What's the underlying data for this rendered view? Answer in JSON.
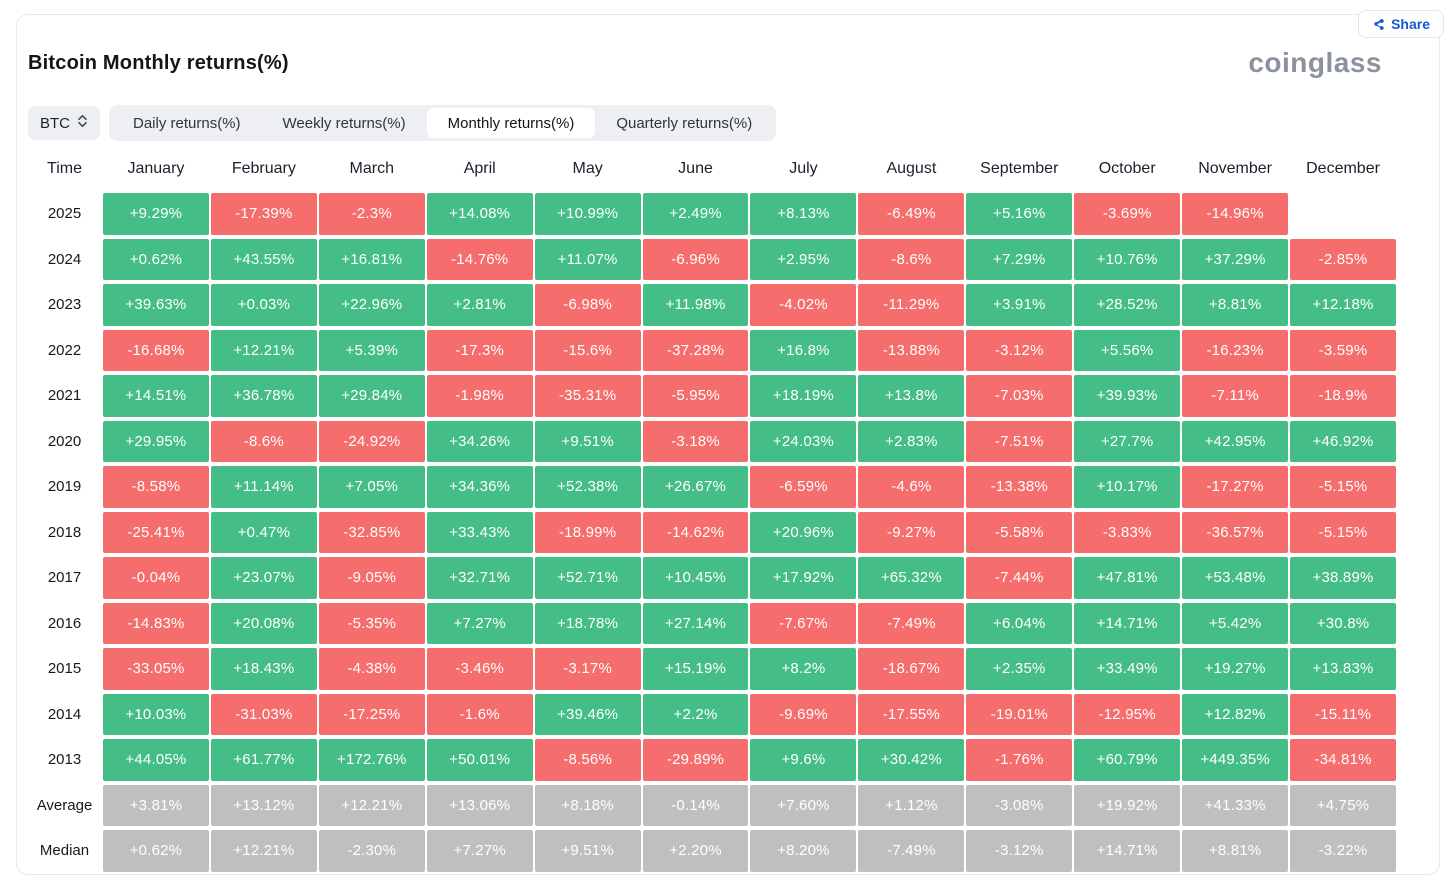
{
  "share_button": {
    "label": "Share"
  },
  "brand": {
    "logo_text": "coinglass"
  },
  "page": {
    "title": "Bitcoin Monthly returns(%)"
  },
  "controls": {
    "symbol_select": {
      "value": "BTC"
    },
    "tabs": [
      {
        "label": "Daily returns(%)",
        "active": false
      },
      {
        "label": "Weekly returns(%)",
        "active": false
      },
      {
        "label": "Monthly returns(%)",
        "active": true
      },
      {
        "label": "Quarterly returns(%)",
        "active": false
      }
    ]
  },
  "table": {
    "corner_label": "Time",
    "month_headers": [
      "January",
      "February",
      "March",
      "April",
      "May",
      "June",
      "July",
      "August",
      "September",
      "October",
      "November",
      "December"
    ],
    "rows": [
      {
        "label": "2025",
        "type": "year",
        "values": [
          "+9.29%",
          "-17.39%",
          "-2.3%",
          "+14.08%",
          "+10.99%",
          "+2.49%",
          "+8.13%",
          "-6.49%",
          "+5.16%",
          "-3.69%",
          "-14.96%",
          null
        ]
      },
      {
        "label": "2024",
        "type": "year",
        "values": [
          "+0.62%",
          "+43.55%",
          "+16.81%",
          "-14.76%",
          "+11.07%",
          "-6.96%",
          "+2.95%",
          "-8.6%",
          "+7.29%",
          "+10.76%",
          "+37.29%",
          "-2.85%"
        ]
      },
      {
        "label": "2023",
        "type": "year",
        "values": [
          "+39.63%",
          "+0.03%",
          "+22.96%",
          "+2.81%",
          "-6.98%",
          "+11.98%",
          "-4.02%",
          "-11.29%",
          "+3.91%",
          "+28.52%",
          "+8.81%",
          "+12.18%"
        ]
      },
      {
        "label": "2022",
        "type": "year",
        "values": [
          "-16.68%",
          "+12.21%",
          "+5.39%",
          "-17.3%",
          "-15.6%",
          "-37.28%",
          "+16.8%",
          "-13.88%",
          "-3.12%",
          "+5.56%",
          "-16.23%",
          "-3.59%"
        ]
      },
      {
        "label": "2021",
        "type": "year",
        "values": [
          "+14.51%",
          "+36.78%",
          "+29.84%",
          "-1.98%",
          "-35.31%",
          "-5.95%",
          "+18.19%",
          "+13.8%",
          "-7.03%",
          "+39.93%",
          "-7.11%",
          "-18.9%"
        ]
      },
      {
        "label": "2020",
        "type": "year",
        "values": [
          "+29.95%",
          "-8.6%",
          "-24.92%",
          "+34.26%",
          "+9.51%",
          "-3.18%",
          "+24.03%",
          "+2.83%",
          "-7.51%",
          "+27.7%",
          "+42.95%",
          "+46.92%"
        ]
      },
      {
        "label": "2019",
        "type": "year",
        "values": [
          "-8.58%",
          "+11.14%",
          "+7.05%",
          "+34.36%",
          "+52.38%",
          "+26.67%",
          "-6.59%",
          "-4.6%",
          "-13.38%",
          "+10.17%",
          "-17.27%",
          "-5.15%"
        ]
      },
      {
        "label": "2018",
        "type": "year",
        "values": [
          "-25.41%",
          "+0.47%",
          "-32.85%",
          "+33.43%",
          "-18.99%",
          "-14.62%",
          "+20.96%",
          "-9.27%",
          "-5.58%",
          "-3.83%",
          "-36.57%",
          "-5.15%"
        ]
      },
      {
        "label": "2017",
        "type": "year",
        "values": [
          "-0.04%",
          "+23.07%",
          "-9.05%",
          "+32.71%",
          "+52.71%",
          "+10.45%",
          "+17.92%",
          "+65.32%",
          "-7.44%",
          "+47.81%",
          "+53.48%",
          "+38.89%"
        ]
      },
      {
        "label": "2016",
        "type": "year",
        "values": [
          "-14.83%",
          "+20.08%",
          "-5.35%",
          "+7.27%",
          "+18.78%",
          "+27.14%",
          "-7.67%",
          "-7.49%",
          "+6.04%",
          "+14.71%",
          "+5.42%",
          "+30.8%"
        ]
      },
      {
        "label": "2015",
        "type": "year",
        "values": [
          "-33.05%",
          "+18.43%",
          "-4.38%",
          "-3.46%",
          "-3.17%",
          "+15.19%",
          "+8.2%",
          "-18.67%",
          "+2.35%",
          "+33.49%",
          "+19.27%",
          "+13.83%"
        ]
      },
      {
        "label": "2014",
        "type": "year",
        "values": [
          "+10.03%",
          "-31.03%",
          "-17.25%",
          "-1.6%",
          "+39.46%",
          "+2.2%",
          "-9.69%",
          "-17.55%",
          "-19.01%",
          "-12.95%",
          "+12.82%",
          "-15.11%"
        ]
      },
      {
        "label": "2013",
        "type": "year",
        "values": [
          "+44.05%",
          "+61.77%",
          "+172.76%",
          "+50.01%",
          "-8.56%",
          "-29.89%",
          "+9.6%",
          "+30.42%",
          "-1.76%",
          "+60.79%",
          "+449.35%",
          "-34.81%"
        ]
      },
      {
        "label": "Average",
        "type": "summary",
        "values": [
          "+3.81%",
          "+13.12%",
          "+12.21%",
          "+13.06%",
          "+8.18%",
          "-0.14%",
          "+7.60%",
          "+1.12%",
          "-3.08%",
          "+19.92%",
          "+41.33%",
          "+4.75%"
        ]
      },
      {
        "label": "Median",
        "type": "summary",
        "values": [
          "+0.62%",
          "+12.21%",
          "-2.30%",
          "+7.27%",
          "+9.51%",
          "+2.20%",
          "+8.20%",
          "-7.49%",
          "-3.12%",
          "+14.71%",
          "+8.81%",
          "-3.22%"
        ]
      }
    ]
  },
  "colors": {
    "positive": "#44bd87",
    "negative": "#f56d6c",
    "summary": "#bfbfbf",
    "accent_blue": "#1657d3",
    "brand_gray": "#8a929c"
  }
}
